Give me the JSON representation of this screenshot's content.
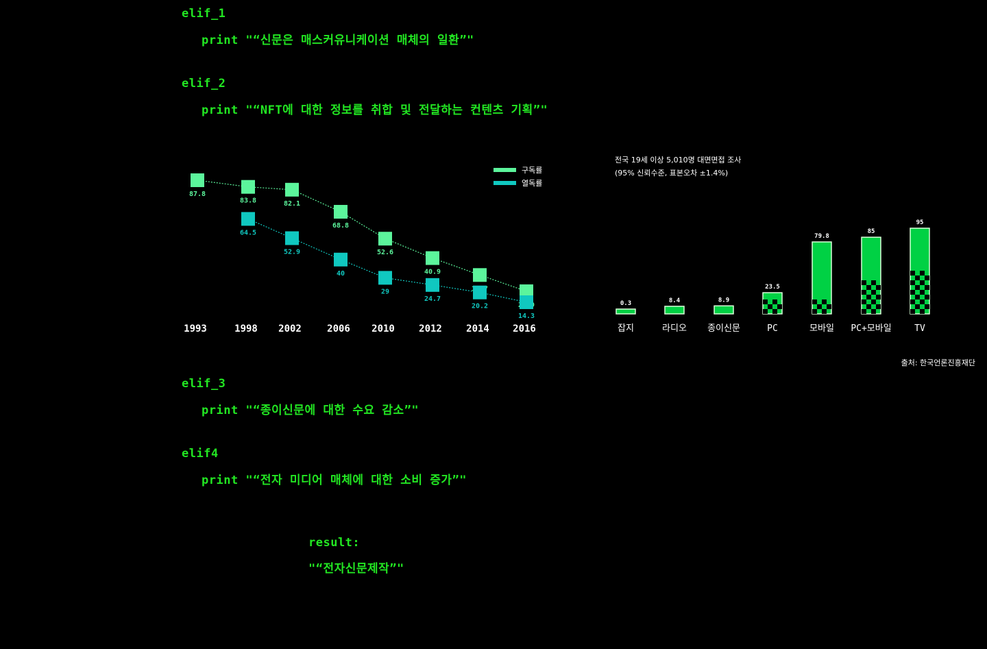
{
  "code": {
    "blocks": [
      {
        "keyword": "elif_1",
        "statement": "print \"“신문은 매스커유니케이션 매체의 일환”\""
      },
      {
        "keyword": "elif_2",
        "statement": "print \"“NFT에 대한 정보를 취합 및 전달하는 컨텐츠 기획”\""
      },
      {
        "keyword": "elif_3",
        "statement": "print \"“종이신문에 대한 수요 감소”\""
      },
      {
        "keyword": "elif4",
        "statement": "print \"“전자 미디어 매체에 대한 소비 증가”\""
      }
    ],
    "result_label": "result:",
    "result_value": "\"“전자신문제작”\""
  },
  "colors": {
    "bg": "#000000",
    "code_green": "#22e622",
    "subscription": "#5cf59c",
    "readership": "#10c8c0",
    "bar_green": "#00d144",
    "white": "#ffffff"
  },
  "chart_data": [
    {
      "type": "line",
      "x": [
        "1993",
        "1998",
        "2002",
        "2006",
        "2010",
        "2012",
        "2014",
        "2016"
      ],
      "series": [
        {
          "name": "구독률",
          "color": "#5cf59c",
          "values": [
            87.8,
            83.8,
            82.1,
            68.8,
            52.6,
            40.9,
            30.7,
            20.9
          ]
        },
        {
          "name": "열독률",
          "color": "#10c8c0",
          "values": [
            null,
            64.5,
            52.9,
            40,
            29,
            24.7,
            20.2,
            14.3
          ]
        }
      ],
      "value_labels": {
        "구독률": [
          "87.8",
          "83.8",
          "82.1",
          "68.8",
          "52.6",
          "40.9",
          "30.7",
          "20.9"
        ],
        "열독률": [
          "",
          "64.5",
          "52.9",
          "40",
          "29",
          "24.7",
          "20.2",
          "14.3"
        ]
      },
      "ylim": [
        10,
        90
      ],
      "grid": false,
      "legend": "top-right"
    },
    {
      "type": "bar",
      "subtitle": "전국 19세 이상 5,010명 대면면접 조사",
      "note": "(95% 신뢰수준, 표본오차 ±1.4%)",
      "categories": [
        "잡지",
        "라디오",
        "종이신문",
        "PC",
        "모바일",
        "PC+모바일",
        "TV"
      ],
      "values": [
        0.3,
        8.4,
        8.9,
        23.5,
        79.8,
        85,
        95
      ],
      "value_labels": [
        "0.3",
        "8.4",
        "8.9",
        "23.5",
        "79.8",
        "85",
        "95"
      ],
      "source": "출처: 한국언론진흥재단",
      "grid": false
    }
  ]
}
